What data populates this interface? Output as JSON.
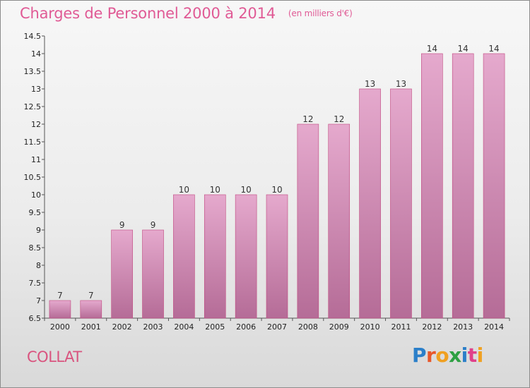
{
  "title": "Charges de Personnel 2000 à 2014",
  "subtitle": "(en milliers d'€)",
  "commune": "COLLAT",
  "logo": {
    "text": "Proxiti",
    "letter_colors": [
      "#2b7fc9",
      "#e8572a",
      "#f0a020",
      "#2ea043",
      "#2b7fc9",
      "#e0408a",
      "#f0a020"
    ]
  },
  "chart_data": {
    "type": "bar",
    "title": "Charges de Personnel 2000 à 2014",
    "subtitle": "(en milliers d'€)",
    "categories": [
      "2000",
      "2001",
      "2002",
      "2003",
      "2004",
      "2005",
      "2006",
      "2007",
      "2008",
      "2009",
      "2010",
      "2011",
      "2012",
      "2013",
      "2014"
    ],
    "values": [
      7,
      7,
      9,
      9,
      10,
      10,
      10,
      10,
      12,
      12,
      13,
      13,
      14,
      14,
      14
    ],
    "value_labels": [
      "7",
      "7",
      "9",
      "9",
      "10",
      "10",
      "10",
      "10",
      "12",
      "12",
      "13",
      "13",
      "14",
      "14",
      "14"
    ],
    "ylim": [
      6.5,
      14.5
    ],
    "yticks": [
      6.5,
      7,
      7.5,
      8,
      8.5,
      9,
      9.5,
      10,
      10.5,
      11,
      11.5,
      12,
      12.5,
      13,
      13.5,
      14,
      14.5
    ],
    "ytick_labels": [
      "6.5",
      "7",
      "7.5",
      "8",
      "8.5",
      "9",
      "9.5",
      "10",
      "10.5",
      "11",
      "11.5",
      "12",
      "12.5",
      "13",
      "13.5",
      "14",
      "14.5"
    ],
    "grid": false,
    "bar_color_top": "#e5a9cd",
    "bar_color_bottom": "#b56c97",
    "bar_edge_color": "#c0487f"
  }
}
